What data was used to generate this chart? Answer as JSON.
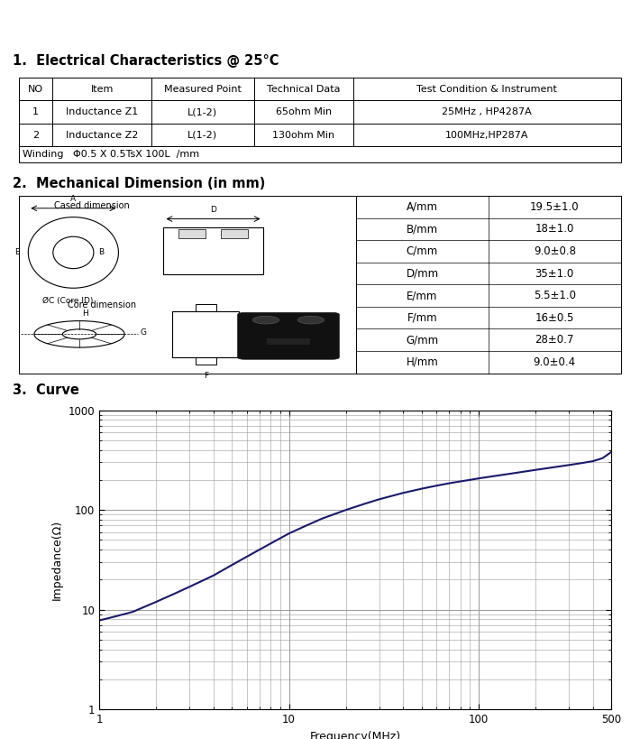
{
  "title_section1": "1.  Electrical Characteristics @ 25°C",
  "title_section2": "2.  Mechanical Dimension (in mm)",
  "title_section3": "3.  Curve",
  "table1_headers": [
    "NO",
    "Item",
    "Measured Point",
    "Technical Data",
    "Test Condition & Instrument"
  ],
  "table1_rows": [
    [
      "1",
      "Inductance Z1",
      "L(1-2)",
      "65ohm Min",
      "25MHz , HP4287A"
    ],
    [
      "2",
      "Inductance Z2",
      "L(1-2)",
      "130ohm Min",
      "100MHz,HP287A"
    ]
  ],
  "table1_winding": "Winding   Φ0.5 X 0.5TsX 100L  /mm",
  "table2_params": [
    "A/mm",
    "B/mm",
    "C/mm",
    "D/mm",
    "E/mm",
    "F/mm",
    "G/mm",
    "H/mm"
  ],
  "table2_values": [
    "19.5±1.0",
    "18±1.0",
    "9.0±0.8",
    "35±1.0",
    "5.5±1.0",
    "16±0.5",
    "28±0.7",
    "9.0±0.4"
  ],
  "curve_freq": [
    1,
    1.2,
    1.5,
    2,
    2.5,
    3,
    4,
    5,
    6,
    7,
    8,
    9,
    10,
    12,
    15,
    20,
    25,
    30,
    40,
    50,
    60,
    70,
    80,
    90,
    100,
    120,
    150,
    200,
    250,
    300,
    350,
    400,
    450,
    500
  ],
  "curve_imp": [
    7.8,
    8.5,
    9.5,
    12,
    14.5,
    17,
    22,
    28,
    34,
    40,
    46,
    52,
    58,
    68,
    82,
    100,
    115,
    128,
    148,
    163,
    175,
    185,
    193,
    200,
    207,
    218,
    232,
    252,
    268,
    282,
    295,
    308,
    330,
    380
  ],
  "line_color": "#1a1a6e",
  "bg_color": "#ffffff",
  "grid_color": "#999999",
  "section_title_fontsize": 10.5,
  "table_fontsize": 8,
  "ylabel": "Impedance(Ω)",
  "xlabel": "Frequency(MHz)"
}
